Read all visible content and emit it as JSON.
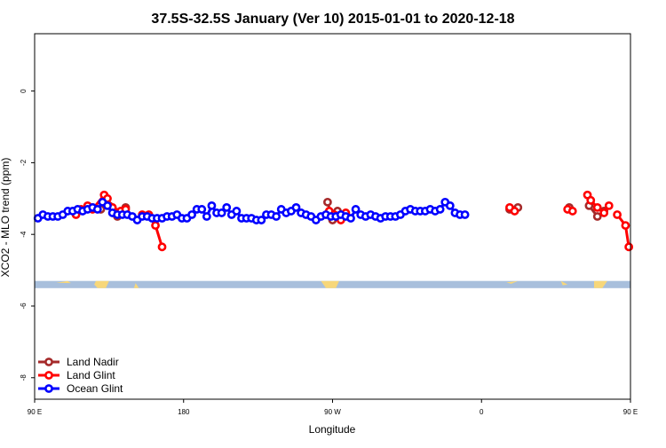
{
  "chart_data": {
    "type": "line",
    "title": "37.5S-32.5S January (Ver 10)   2015-01-01 to 2020-12-18",
    "xlabel": "Longitude",
    "ylabel": "XCO2 - MLO trend (ppm)",
    "xlim": [
      90,
      450
    ],
    "ylim": [
      -8.6,
      1.6
    ],
    "x_ticks": [
      {
        "value": 90,
        "label": "90 E"
      },
      {
        "value": 180,
        "label": "180"
      },
      {
        "value": 270,
        "label": "90 W"
      },
      {
        "value": 360,
        "label": "0"
      },
      {
        "value": 450,
        "label": "90 E"
      },
      {
        "value": 540,
        "label": "180"
      }
    ],
    "y_ticks": [
      {
        "value": 0,
        "label": "0"
      },
      {
        "value": -2,
        "label": "-2"
      },
      {
        "value": -4,
        "label": "-4"
      },
      {
        "value": -6,
        "label": "-6"
      },
      {
        "value": -8,
        "label": "-8"
      }
    ],
    "grid": false,
    "legend_position": "bottom-left",
    "map_strip": {
      "y_range": [
        -5.5,
        -5.3
      ],
      "ocean_color": "#a8bfdc",
      "land_color": "#f7d77a"
    },
    "series": [
      {
        "name": "Land Nadir",
        "color": "#a52a2a",
        "segments": [
          [
            [
              125,
              -3.25
            ],
            [
              130,
              -3.3
            ],
            [
              135,
              -3.2
            ],
            [
              140,
              -3.5
            ],
            [
              145,
              -3.25
            ]
          ],
          [
            [
              267,
              -3.1
            ],
            [
              270,
              -3.6
            ],
            [
              273,
              -3.35
            ]
          ],
          [
            [
              377,
              -3.3
            ],
            [
              382,
              -3.25
            ]
          ],
          [
            [
              413,
              -3.25
            ]
          ],
          [
            [
              425,
              -3.2
            ],
            [
              430,
              -3.5
            ],
            [
              434,
              -3.35
            ]
          ]
        ]
      },
      {
        "name": "Land Glint",
        "color": "#ff0000",
        "segments": [
          [
            [
              115,
              -3.45
            ],
            [
              118,
              -3.3
            ],
            [
              122,
              -3.2
            ],
            [
              125,
              -3.3
            ],
            [
              132,
              -2.9
            ],
            [
              134,
              -3.0
            ],
            [
              137,
              -3.25
            ],
            [
              142,
              -3.35
            ],
            [
              145,
              -3.3
            ]
          ],
          [
            [
              155,
              -3.45
            ],
            [
              159,
              -3.45
            ],
            [
              163,
              -3.75
            ],
            [
              167,
              -4.35
            ]
          ],
          [
            [
              268,
              -3.35
            ],
            [
              271,
              -3.45
            ],
            [
              275,
              -3.6
            ],
            [
              278,
              -3.4
            ]
          ],
          [
            [
              377,
              -3.25
            ],
            [
              380,
              -3.35
            ]
          ],
          [
            [
              412,
              -3.3
            ],
            [
              415,
              -3.35
            ]
          ],
          [
            [
              424,
              -2.9
            ],
            [
              426,
              -3.05
            ],
            [
              430,
              -3.25
            ],
            [
              434,
              -3.4
            ],
            [
              437,
              -3.2
            ]
          ],
          [
            [
              442,
              -3.45
            ],
            [
              447,
              -3.75
            ],
            [
              449,
              -4.35
            ]
          ]
        ]
      },
      {
        "name": "Ocean Glint",
        "color": "#0000ff",
        "segments": [
          [
            [
              92,
              -3.55
            ],
            [
              95,
              -3.45
            ],
            [
              98,
              -3.5
            ],
            [
              101,
              -3.5
            ],
            [
              104,
              -3.5
            ],
            [
              107,
              -3.45
            ],
            [
              110,
              -3.35
            ],
            [
              113,
              -3.35
            ],
            [
              116,
              -3.3
            ],
            [
              119,
              -3.35
            ],
            [
              122,
              -3.3
            ],
            [
              125,
              -3.25
            ],
            [
              128,
              -3.3
            ],
            [
              131,
              -3.1
            ],
            [
              134,
              -3.2
            ],
            [
              137,
              -3.4
            ],
            [
              140,
              -3.45
            ],
            [
              143,
              -3.45
            ],
            [
              146,
              -3.45
            ],
            [
              149,
              -3.5
            ],
            [
              152,
              -3.6
            ],
            [
              155,
              -3.5
            ],
            [
              158,
              -3.5
            ],
            [
              161,
              -3.55
            ],
            [
              164,
              -3.55
            ],
            [
              167,
              -3.55
            ],
            [
              170,
              -3.5
            ],
            [
              173,
              -3.5
            ],
            [
              176,
              -3.45
            ],
            [
              179,
              -3.55
            ],
            [
              182,
              -3.55
            ],
            [
              185,
              -3.45
            ],
            [
              188,
              -3.3
            ],
            [
              191,
              -3.3
            ],
            [
              194,
              -3.5
            ],
            [
              197,
              -3.2
            ],
            [
              200,
              -3.4
            ],
            [
              203,
              -3.4
            ],
            [
              206,
              -3.25
            ],
            [
              209,
              -3.45
            ],
            [
              212,
              -3.35
            ],
            [
              215,
              -3.55
            ],
            [
              218,
              -3.55
            ],
            [
              221,
              -3.55
            ],
            [
              224,
              -3.6
            ],
            [
              227,
              -3.6
            ],
            [
              230,
              -3.45
            ],
            [
              233,
              -3.45
            ],
            [
              236,
              -3.5
            ],
            [
              239,
              -3.3
            ],
            [
              242,
              -3.4
            ],
            [
              245,
              -3.35
            ],
            [
              248,
              -3.25
            ],
            [
              251,
              -3.4
            ],
            [
              254,
              -3.45
            ],
            [
              257,
              -3.5
            ],
            [
              260,
              -3.6
            ],
            [
              263,
              -3.5
            ],
            [
              266,
              -3.45
            ],
            [
              269,
              -3.5
            ],
            [
              272,
              -3.5
            ],
            [
              275,
              -3.45
            ],
            [
              278,
              -3.5
            ],
            [
              281,
              -3.55
            ],
            [
              284,
              -3.3
            ],
            [
              287,
              -3.45
            ],
            [
              290,
              -3.5
            ],
            [
              293,
              -3.45
            ],
            [
              296,
              -3.5
            ],
            [
              299,
              -3.55
            ],
            [
              302,
              -3.5
            ],
            [
              305,
              -3.5
            ],
            [
              308,
              -3.5
            ],
            [
              311,
              -3.45
            ],
            [
              314,
              -3.35
            ],
            [
              317,
              -3.3
            ],
            [
              320,
              -3.35
            ],
            [
              323,
              -3.35
            ],
            [
              326,
              -3.35
            ],
            [
              329,
              -3.3
            ],
            [
              332,
              -3.35
            ],
            [
              335,
              -3.3
            ],
            [
              338,
              -3.1
            ],
            [
              341,
              -3.2
            ],
            [
              344,
              -3.4
            ],
            [
              347,
              -3.45
            ],
            [
              350,
              -3.45
            ]
          ]
        ]
      }
    ]
  }
}
